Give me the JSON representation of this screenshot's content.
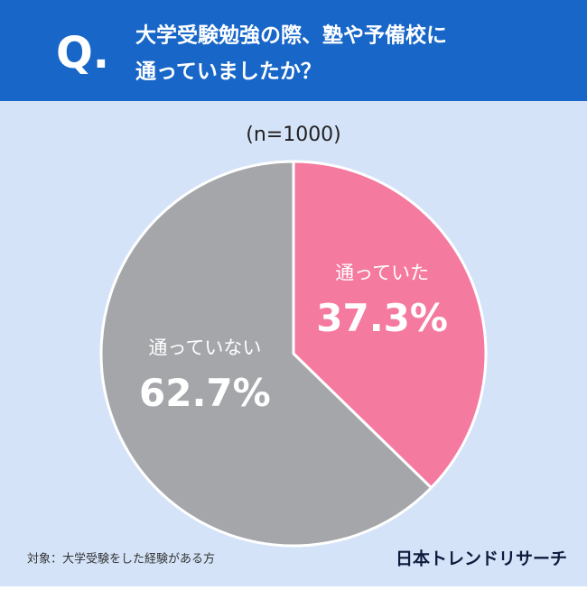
{
  "chart_data": {
    "type": "pie",
    "title_prefix": "Q.",
    "title_lines": [
      "大学受験勉強の際、塾や予備校に",
      "通っていましたか？"
    ],
    "subtitle": "(n=1000)",
    "categories": [
      "通っていた",
      "通っていない"
    ],
    "values": [
      37.3,
      62.7
    ],
    "value_labels": [
      "37.3%",
      "62.7%"
    ],
    "colors": [
      "#f57aa0",
      "#a4a6aa"
    ],
    "footnote": "対象：大学受験をした経験がある方",
    "source": "日本トレンドリサーチ"
  }
}
